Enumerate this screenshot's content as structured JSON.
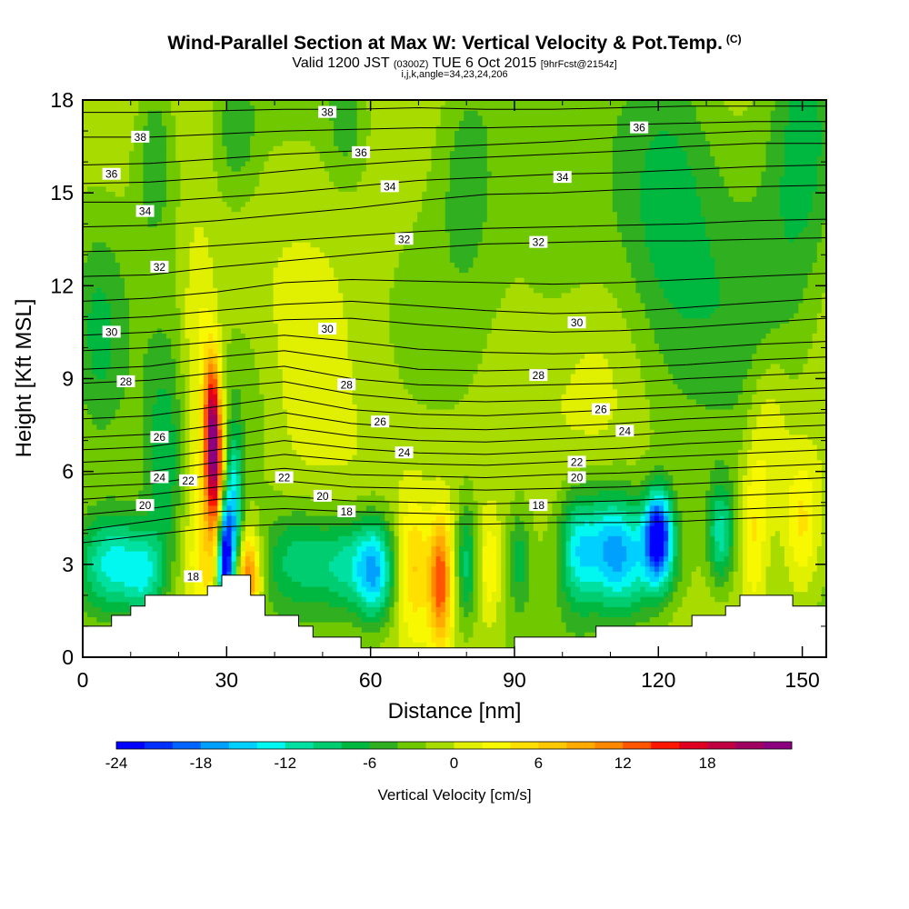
{
  "header": {
    "title": "Wind-Parallel Section at Max W: Vertical Velocity & Pot.Temp.",
    "title_mark": "(C)",
    "valid_prefix": "Valid 1200 JST",
    "valid_utc": "(0300Z)",
    "valid_date": "TUE 6 Oct 2015",
    "valid_fcst": "[9hrFcst@2154z]",
    "indices": "i,j,k,angle=34,23,24,206"
  },
  "chart_data": {
    "type": "heatmap",
    "xlabel": "Distance [nm]",
    "ylabel": "Height [Kft MSL]",
    "xlim": [
      0,
      155
    ],
    "ylim": [
      0,
      18
    ],
    "xticks": [
      0,
      30,
      60,
      90,
      120,
      150
    ],
    "xtick_labels": [
      "0",
      "30",
      "60",
      "90",
      "120",
      "150"
    ],
    "yticks": [
      0,
      3,
      6,
      9,
      12,
      15,
      18
    ],
    "ytick_labels": [
      "0",
      "3",
      "6",
      "9",
      "12",
      "15",
      "18"
    ],
    "colorbar": {
      "label": "Vertical Velocity [cm/s]",
      "min": -24,
      "max": 24,
      "step": 2,
      "tick_values": [
        -24,
        -18,
        -12,
        -6,
        0,
        6,
        12,
        18
      ],
      "tick_labels": [
        "-24",
        "-18",
        "-12",
        "-6",
        "0",
        "6",
        "12",
        "18"
      ],
      "colors": [
        "#0000ff",
        "#0030ff",
        "#0064ff",
        "#00a0ff",
        "#00d0ff",
        "#00f8f0",
        "#00e0a0",
        "#00cc70",
        "#00b840",
        "#30b020",
        "#70c800",
        "#a8dc00",
        "#e0f000",
        "#f8f800",
        "#ffe000",
        "#ffc800",
        "#ffaa00",
        "#ff8800",
        "#ff5500",
        "#ff1800",
        "#e00020",
        "#c00040",
        "#a00060",
        "#8c0080"
      ]
    },
    "terrain": [
      [
        0,
        1.0
      ],
      [
        6,
        1.0
      ],
      [
        6,
        1.35
      ],
      [
        10,
        1.35
      ],
      [
        10,
        1.65
      ],
      [
        13,
        1.65
      ],
      [
        13,
        2.0
      ],
      [
        26,
        2.0
      ],
      [
        26,
        2.3
      ],
      [
        29,
        2.3
      ],
      [
        29,
        2.65
      ],
      [
        35,
        2.65
      ],
      [
        35,
        2.0
      ],
      [
        38,
        2.0
      ],
      [
        38,
        1.35
      ],
      [
        45,
        1.35
      ],
      [
        45,
        1.0
      ],
      [
        48,
        1.0
      ],
      [
        48,
        0.65
      ],
      [
        58,
        0.65
      ],
      [
        58,
        0.3
      ],
      [
        90,
        0.3
      ],
      [
        90,
        0.65
      ],
      [
        107,
        0.65
      ],
      [
        107,
        1.0
      ],
      [
        127,
        1.0
      ],
      [
        127,
        1.35
      ],
      [
        134,
        1.35
      ],
      [
        134,
        1.65
      ],
      [
        137,
        1.65
      ],
      [
        137,
        2.0
      ],
      [
        148,
        2.0
      ],
      [
        148,
        1.65
      ],
      [
        155,
        1.65
      ]
    ],
    "theta_contours": [
      {
        "label": "38",
        "y": [
          17.6,
          17.6,
          17.65,
          17.7,
          17.7,
          17.75,
          17.7,
          17.7,
          17.75,
          17.8,
          17.8,
          17.8
        ]
      },
      {
        "label": "38",
        "y": [
          16.8,
          16.8,
          16.9,
          17.0,
          17.05,
          17.1,
          17.1,
          17.15,
          17.2,
          17.25,
          17.3,
          17.3
        ]
      },
      {
        "label": "36",
        "y": [
          15.9,
          15.95,
          16.1,
          16.25,
          16.35,
          16.45,
          16.55,
          16.65,
          16.8,
          16.9,
          17.0,
          17.0
        ]
      },
      {
        "label": "36",
        "y": [
          15.3,
          15.35,
          15.5,
          15.7,
          15.9,
          16.05,
          16.15,
          16.25,
          16.35,
          16.5,
          16.6,
          16.6
        ]
      },
      {
        "label": "34",
        "y": [
          14.7,
          14.7,
          14.85,
          15.0,
          15.2,
          15.4,
          15.5,
          15.6,
          15.65,
          15.75,
          15.85,
          15.9
        ]
      },
      {
        "label": "34",
        "y": [
          13.9,
          13.95,
          14.1,
          14.3,
          14.5,
          14.75,
          14.95,
          15.0,
          15.1,
          15.15,
          15.2,
          15.25
        ]
      },
      {
        "label": "32",
        "y": [
          13.1,
          13.15,
          13.3,
          13.45,
          13.6,
          13.75,
          13.85,
          13.9,
          13.95,
          14.0,
          14.1,
          14.15
        ]
      },
      {
        "label": "32",
        "y": [
          12.3,
          12.35,
          12.6,
          12.8,
          13.0,
          13.2,
          13.35,
          13.4,
          13.45,
          13.45,
          13.5,
          13.55
        ]
      },
      {
        "label": "",
        "y": [
          11.5,
          11.6,
          11.8,
          12.1,
          12.2,
          12.15,
          12.1,
          12.05,
          12.1,
          12.2,
          12.3,
          12.4
        ]
      },
      {
        "label": "",
        "y": [
          10.9,
          11.0,
          11.2,
          11.4,
          11.5,
          11.35,
          11.2,
          11.1,
          11.15,
          11.3,
          11.45,
          11.6
        ]
      },
      {
        "label": "30",
        "y": [
          10.4,
          10.5,
          10.7,
          10.9,
          10.95,
          10.75,
          10.6,
          10.5,
          10.55,
          10.65,
          10.8,
          10.95
        ]
      },
      {
        "label": "30",
        "y": [
          9.9,
          10.0,
          10.2,
          10.4,
          10.2,
          9.95,
          9.85,
          9.8,
          9.85,
          9.95,
          10.1,
          10.2
        ]
      },
      {
        "label": "",
        "y": [
          9.3,
          9.4,
          9.7,
          9.9,
          9.6,
          9.3,
          9.25,
          9.3,
          9.35,
          9.45,
          9.6,
          9.7
        ]
      },
      {
        "label": "28",
        "y": [
          8.85,
          8.95,
          9.2,
          9.4,
          9.0,
          8.8,
          8.75,
          8.8,
          8.85,
          9.0,
          9.1,
          9.2
        ]
      },
      {
        "label": "28",
        "y": [
          8.3,
          8.4,
          8.7,
          8.9,
          8.5,
          8.3,
          8.25,
          8.3,
          8.4,
          8.5,
          8.6,
          8.7
        ]
      },
      {
        "label": "",
        "y": [
          7.7,
          7.8,
          8.1,
          8.4,
          8.0,
          7.85,
          7.8,
          7.9,
          8.0,
          8.1,
          8.2,
          8.3
        ]
      },
      {
        "label": "26",
        "y": [
          7.1,
          7.2,
          7.5,
          7.9,
          7.55,
          7.4,
          7.35,
          7.45,
          7.55,
          7.7,
          7.8,
          7.9
        ]
      },
      {
        "label": "26",
        "y": [
          6.7,
          6.8,
          7.1,
          7.45,
          7.15,
          7.0,
          6.95,
          7.05,
          7.15,
          7.3,
          7.4,
          7.5
        ]
      },
      {
        "label": "24",
        "y": [
          6.3,
          6.4,
          6.7,
          7.0,
          6.75,
          6.6,
          6.55,
          6.65,
          6.75,
          6.9,
          7.0,
          7.1
        ]
      },
      {
        "label": "24",
        "y": [
          5.9,
          6.0,
          6.3,
          6.55,
          6.35,
          6.25,
          6.2,
          6.3,
          6.4,
          6.5,
          6.6,
          6.7
        ]
      },
      {
        "label": "22",
        "y": [
          5.5,
          5.6,
          5.9,
          6.1,
          5.9,
          5.85,
          5.8,
          5.9,
          5.95,
          6.05,
          6.15,
          6.25
        ]
      },
      {
        "label": "22",
        "y": [
          5.1,
          5.25,
          5.5,
          5.7,
          5.5,
          5.45,
          5.4,
          5.45,
          5.5,
          5.6,
          5.7,
          5.8
        ]
      },
      {
        "label": "20",
        "y": [
          4.6,
          4.8,
          5.1,
          5.2,
          5.05,
          5.0,
          4.95,
          5.0,
          5.05,
          5.15,
          5.25,
          5.35
        ]
      },
      {
        "label": "20",
        "y": [
          4.1,
          4.4,
          4.7,
          4.8,
          4.7,
          4.65,
          4.6,
          4.6,
          4.65,
          4.7,
          4.8,
          4.9
        ]
      },
      {
        "label": "18",
        "y": [
          3.7,
          3.95,
          4.2,
          4.3,
          4.3,
          4.3,
          4.3,
          4.35,
          4.35,
          4.4,
          4.5,
          4.6
        ]
      }
    ],
    "theta_x": [
      0,
      14,
      28,
      42,
      56,
      70,
      84,
      98,
      112,
      126,
      140,
      155
    ],
    "contour_labels": [
      {
        "text": "38",
        "x": 12,
        "y": 16.8
      },
      {
        "text": "38",
        "x": 51,
        "y": 17.6
      },
      {
        "text": "36",
        "x": 116,
        "y": 17.1
      },
      {
        "text": "36",
        "x": 6,
        "y": 15.6
      },
      {
        "text": "36",
        "x": 58,
        "y": 16.3
      },
      {
        "text": "34",
        "x": 64,
        "y": 15.2
      },
      {
        "text": "34",
        "x": 100,
        "y": 15.5
      },
      {
        "text": "34",
        "x": 13,
        "y": 14.4
      },
      {
        "text": "32",
        "x": 67,
        "y": 13.5
      },
      {
        "text": "32",
        "x": 95,
        "y": 13.4
      },
      {
        "text": "32",
        "x": 16,
        "y": 12.6
      },
      {
        "text": "30",
        "x": 6,
        "y": 10.5
      },
      {
        "text": "30",
        "x": 51,
        "y": 10.6
      },
      {
        "text": "30",
        "x": 103,
        "y": 10.8
      },
      {
        "text": "28",
        "x": 9,
        "y": 8.9
      },
      {
        "text": "28",
        "x": 55,
        "y": 8.8
      },
      {
        "text": "28",
        "x": 95,
        "y": 9.1
      },
      {
        "text": "26",
        "x": 108,
        "y": 8.0
      },
      {
        "text": "26",
        "x": 62,
        "y": 7.6
      },
      {
        "text": "26",
        "x": 16,
        "y": 7.1
      },
      {
        "text": "24",
        "x": 113,
        "y": 7.3
      },
      {
        "text": "24",
        "x": 67,
        "y": 6.6
      },
      {
        "text": "24",
        "x": 16,
        "y": 5.8
      },
      {
        "text": "22",
        "x": 103,
        "y": 6.3
      },
      {
        "text": "22",
        "x": 22,
        "y": 5.7
      },
      {
        "text": "22",
        "x": 42,
        "y": 5.8
      },
      {
        "text": "20",
        "x": 103,
        "y": 5.8
      },
      {
        "text": "20",
        "x": 50,
        "y": 5.2
      },
      {
        "text": "20",
        "x": 13,
        "y": 4.9
      },
      {
        "text": "18",
        "x": 55,
        "y": 4.7
      },
      {
        "text": "18",
        "x": 95,
        "y": 4.9
      },
      {
        "text": "18",
        "x": 23,
        "y": 2.6
      }
    ],
    "vv_features": [
      {
        "x": 27,
        "y": 7.5,
        "sx": 1.2,
        "sy": 1.6,
        "v": 20
      },
      {
        "x": 28,
        "y": 5.5,
        "sx": 1.3,
        "sy": 1.5,
        "v": 10
      },
      {
        "x": 29.5,
        "y": 3.2,
        "sx": 1.1,
        "sy": 1.4,
        "v": -24
      },
      {
        "x": 31.5,
        "y": 4.6,
        "sx": 1.3,
        "sy": 2.0,
        "v": -13
      },
      {
        "x": 34.5,
        "y": 2.6,
        "sx": 1.8,
        "sy": 1.0,
        "v": 14
      },
      {
        "x": 26,
        "y": 4.0,
        "sx": 3.0,
        "sy": 2.5,
        "v": 6
      },
      {
        "x": 24,
        "y": 10.5,
        "sx": 2.5,
        "sy": 2.5,
        "v": 4
      },
      {
        "x": 17,
        "y": 6.0,
        "sx": 3.0,
        "sy": 2.5,
        "v": -6
      },
      {
        "x": 6,
        "y": 3.0,
        "sx": 5.0,
        "sy": 1.2,
        "v": -12
      },
      {
        "x": 13,
        "y": 2.6,
        "sx": 3.0,
        "sy": 1.0,
        "v": -8
      },
      {
        "x": 45,
        "y": 3.2,
        "sx": 5.0,
        "sy": 1.1,
        "v": -7
      },
      {
        "x": 55,
        "y": 3.0,
        "sx": 4.0,
        "sy": 1.1,
        "v": -8
      },
      {
        "x": 61,
        "y": 2.8,
        "sx": 2.8,
        "sy": 1.2,
        "v": -14
      },
      {
        "x": 69,
        "y": 3.0,
        "sx": 2.0,
        "sy": 1.5,
        "v": 6
      },
      {
        "x": 74.5,
        "y": 2.5,
        "sx": 1.6,
        "sy": 1.4,
        "v": 14
      },
      {
        "x": 80,
        "y": 3.0,
        "sx": 1.5,
        "sy": 1.4,
        "v": -8
      },
      {
        "x": 85,
        "y": 3.0,
        "sx": 1.5,
        "sy": 1.2,
        "v": 5
      },
      {
        "x": 91,
        "y": 3.2,
        "sx": 1.6,
        "sy": 1.2,
        "v": -5
      },
      {
        "x": 103,
        "y": 3.5,
        "sx": 2.5,
        "sy": 1.3,
        "v": -9
      },
      {
        "x": 110,
        "y": 3.6,
        "sx": 4.0,
        "sy": 1.3,
        "v": -12
      },
      {
        "x": 120,
        "y": 4.0,
        "sx": 2.0,
        "sy": 1.0,
        "v": -20
      },
      {
        "x": 117,
        "y": 3.0,
        "sx": 6.0,
        "sy": 1.3,
        "v": -8
      },
      {
        "x": 133,
        "y": 4.0,
        "sx": 2.0,
        "sy": 1.2,
        "v": -10
      },
      {
        "x": 140,
        "y": 4.0,
        "sx": 1.8,
        "sy": 1.8,
        "v": 5
      },
      {
        "x": 150,
        "y": 4.3,
        "sx": 2.5,
        "sy": 1.6,
        "v": 6
      },
      {
        "x": 143,
        "y": 7.5,
        "sx": 3.0,
        "sy": 2.0,
        "v": 4
      },
      {
        "x": 3,
        "y": 10.5,
        "sx": 4.0,
        "sy": 2.5,
        "v": -5
      },
      {
        "x": 35,
        "y": 8.5,
        "sx": 5.0,
        "sy": 2.5,
        "v": -3
      },
      {
        "x": 15,
        "y": 16.5,
        "sx": 3.0,
        "sy": 2.0,
        "v": -5
      },
      {
        "x": 32,
        "y": 17.0,
        "sx": 3.0,
        "sy": 1.5,
        "v": -4
      },
      {
        "x": 55,
        "y": 17.5,
        "sx": 3.0,
        "sy": 1.5,
        "v": -4
      },
      {
        "x": 80,
        "y": 16.0,
        "sx": 5.0,
        "sy": 3.0,
        "v": -4
      },
      {
        "x": 100,
        "y": 12.5,
        "sx": 8.0,
        "sy": 3.0,
        "v": -3
      },
      {
        "x": 122,
        "y": 15.5,
        "sx": 8.0,
        "sy": 4.0,
        "v": -6
      },
      {
        "x": 142,
        "y": 11.0,
        "sx": 8.0,
        "sy": 3.0,
        "v": -4
      },
      {
        "x": 150,
        "y": 16.0,
        "sx": 5.0,
        "sy": 3.0,
        "v": -5
      },
      {
        "x": 110,
        "y": 9.5,
        "sx": 8.0,
        "sy": 2.5,
        "v": 2
      },
      {
        "x": 65,
        "y": 6.0,
        "sx": 12.0,
        "sy": 2.0,
        "v": 1
      },
      {
        "x": 50,
        "y": 9.5,
        "sx": 12.0,
        "sy": 3.0,
        "v": 1
      }
    ]
  }
}
